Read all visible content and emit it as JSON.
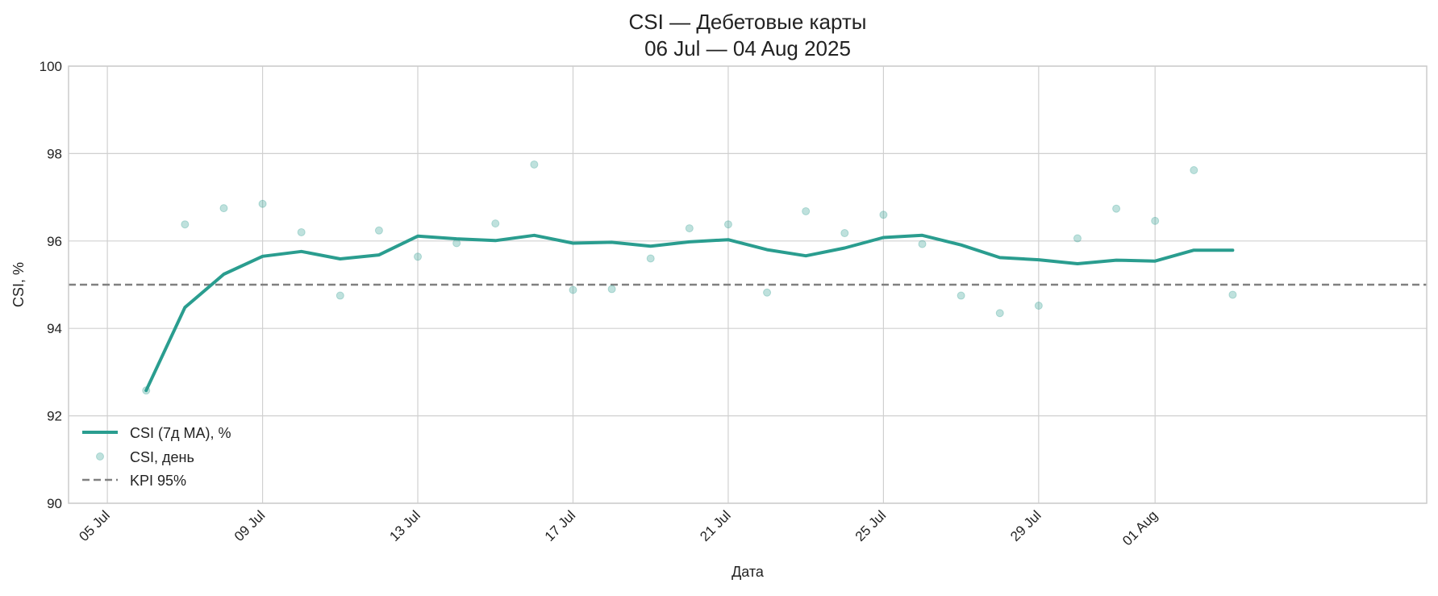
{
  "chart_data": {
    "type": "line",
    "title": "CSI — Дебетовые карты",
    "subtitle": "06 Jul — 04 Aug 2025",
    "xlabel": "Дата",
    "ylabel": "CSI, %",
    "ylim": [
      90,
      100
    ],
    "yticks": [
      "90",
      "92",
      "94",
      "96",
      "98",
      "100"
    ],
    "xlim": [
      "2025-07-04",
      "2025-08-08"
    ],
    "xticks": [
      {
        "date": "2025-07-05",
        "label": "05 Jul"
      },
      {
        "date": "2025-07-09",
        "label": "09 Jul"
      },
      {
        "date": "2025-07-13",
        "label": "13 Jul"
      },
      {
        "date": "2025-07-17",
        "label": "17 Jul"
      },
      {
        "date": "2025-07-21",
        "label": "21 Jul"
      },
      {
        "date": "2025-07-25",
        "label": "25 Jul"
      },
      {
        "date": "2025-07-29",
        "label": "29 Jul"
      },
      {
        "date": "2025-08-01",
        "label": "01 Aug"
      }
    ],
    "grid": true,
    "legend_position": "bottom-left",
    "colors": {
      "ma": "#2a9d8f",
      "daily": "#2a9d8f",
      "kpi": "#808080",
      "grid": "#d0d0d0",
      "frame": "#cccccc"
    },
    "series": [
      {
        "name": "CSI (7д MA), %",
        "kind": "line",
        "x": [
          "2025-07-06",
          "2025-07-07",
          "2025-07-08",
          "2025-07-09",
          "2025-07-10",
          "2025-07-11",
          "2025-07-12",
          "2025-07-13",
          "2025-07-14",
          "2025-07-15",
          "2025-07-16",
          "2025-07-17",
          "2025-07-18",
          "2025-07-19",
          "2025-07-20",
          "2025-07-21",
          "2025-07-22",
          "2025-07-23",
          "2025-07-24",
          "2025-07-25",
          "2025-07-26",
          "2025-07-27",
          "2025-07-28",
          "2025-07-29",
          "2025-07-30",
          "2025-07-31",
          "2025-08-01",
          "2025-08-02",
          "2025-08-03"
        ],
        "values": [
          92.58,
          94.48,
          95.24,
          95.65,
          95.76,
          95.59,
          95.68,
          96.11,
          96.05,
          96.01,
          96.13,
          95.95,
          95.97,
          95.88,
          95.98,
          96.03,
          95.8,
          95.66,
          95.84,
          96.08,
          96.13,
          95.91,
          95.62,
          95.57,
          95.48,
          95.56,
          95.54,
          95.79,
          95.79
        ]
      },
      {
        "name": "CSI, день",
        "kind": "scatter",
        "x": [
          "2025-07-06",
          "2025-07-07",
          "2025-07-08",
          "2025-07-09",
          "2025-07-10",
          "2025-07-11",
          "2025-07-12",
          "2025-07-13",
          "2025-07-14",
          "2025-07-15",
          "2025-07-16",
          "2025-07-17",
          "2025-07-18",
          "2025-07-19",
          "2025-07-20",
          "2025-07-21",
          "2025-07-22",
          "2025-07-23",
          "2025-07-24",
          "2025-07-25",
          "2025-07-26",
          "2025-07-27",
          "2025-07-28",
          "2025-07-29",
          "2025-07-30",
          "2025-07-31",
          "2025-08-01",
          "2025-08-02",
          "2025-08-03"
        ],
        "values": [
          92.58,
          96.38,
          96.75,
          96.85,
          96.2,
          94.75,
          96.24,
          95.64,
          95.95,
          96.4,
          97.75,
          94.88,
          94.9,
          95.6,
          96.29,
          96.38,
          94.82,
          96.68,
          96.18,
          96.6,
          95.93,
          94.75,
          94.35,
          94.52,
          96.06,
          96.74,
          96.46,
          97.62,
          94.77
        ]
      },
      {
        "name": "KPI 95%",
        "kind": "hline",
        "value": 95
      }
    ]
  }
}
